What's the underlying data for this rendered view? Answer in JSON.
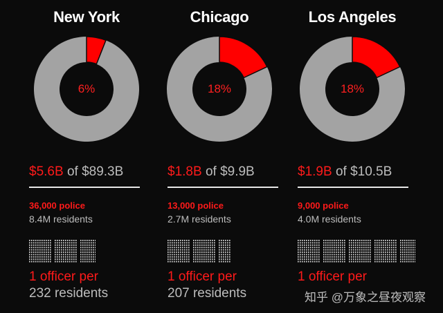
{
  "chart_data": [
    {
      "type": "pie",
      "title": "New York",
      "slice_percent": 6,
      "percent_label": "6%",
      "budget_amount": "$5.6B",
      "budget_total": "$89.3B",
      "police": "36,000 police",
      "residents": "8.4M residents",
      "per_label": "1 officer per",
      "per_value": "232 residents",
      "colors": {
        "slice": "#ff0000",
        "rest": "#a3a3a3"
      }
    },
    {
      "type": "pie",
      "title": "Chicago",
      "slice_percent": 18,
      "percent_label": "18%",
      "budget_amount": "$1.8B",
      "budget_total": "$9.9B",
      "police": "13,000 police",
      "residents": "2.7M residents",
      "per_label": "1 officer per",
      "per_value": "207 residents",
      "colors": {
        "slice": "#ff0000",
        "rest": "#a3a3a3"
      }
    },
    {
      "type": "pie",
      "title": "Los Angeles",
      "slice_percent": 18,
      "percent_label": "18%",
      "budget_amount": "$1.9B",
      "budget_total": "$10.5B",
      "police": "9,000 police",
      "residents": "4.0M residents",
      "per_label": "1 officer per",
      "per_value": "",
      "colors": {
        "slice": "#ff0000",
        "rest": "#a3a3a3"
      }
    }
  ],
  "shared": {
    "of_word": "of"
  },
  "watermark": "知乎 @万象之昼夜观察"
}
